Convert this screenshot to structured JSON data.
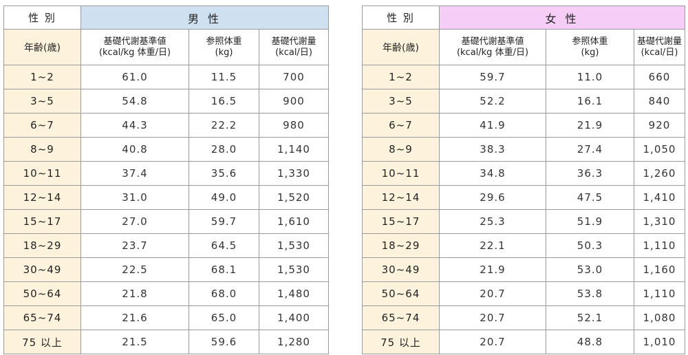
{
  "male": {
    "sex_label": "性 別",
    "sex_title": "男 性",
    "age_header": "年齢(歳)",
    "col_ref_value": [
      "基礎代謝基準値",
      "(kcal/kg 体重/日)"
    ],
    "col_ref_weight": [
      "参照体重",
      "(kg)"
    ],
    "col_bmr": [
      "基礎代謝量",
      "(kcal/日)"
    ],
    "rows": [
      {
        "age": "1~2",
        "ref": "61.0",
        "weight": "11.5",
        "bmr": "700"
      },
      {
        "age": "3~5",
        "ref": "54.8",
        "weight": "16.5",
        "bmr": "900"
      },
      {
        "age": "6~7",
        "ref": "44.3",
        "weight": "22.2",
        "bmr": "980"
      },
      {
        "age": "8~9",
        "ref": "40.8",
        "weight": "28.0",
        "bmr": "1,140"
      },
      {
        "age": "10~11",
        "ref": "37.4",
        "weight": "35.6",
        "bmr": "1,330"
      },
      {
        "age": "12~14",
        "ref": "31.0",
        "weight": "49.0",
        "bmr": "1,520"
      },
      {
        "age": "15~17",
        "ref": "27.0",
        "weight": "59.7",
        "bmr": "1,610"
      },
      {
        "age": "18~29",
        "ref": "23.7",
        "weight": "64.5",
        "bmr": "1,530"
      },
      {
        "age": "30~49",
        "ref": "22.5",
        "weight": "68.1",
        "bmr": "1,530"
      },
      {
        "age": "50~64",
        "ref": "21.8",
        "weight": "68.0",
        "bmr": "1,480"
      },
      {
        "age": "65~74",
        "ref": "21.6",
        "weight": "65.0",
        "bmr": "1,400"
      },
      {
        "age": "75 以上",
        "ref": "21.5",
        "weight": "59.6",
        "bmr": "1,280"
      }
    ]
  },
  "female": {
    "sex_label": "性 別",
    "sex_title": "女 性",
    "age_header": "年齢(歳)",
    "col_ref_value": [
      "基礎代謝基準値",
      "(kcal/kg 体重/日)"
    ],
    "col_ref_weight": [
      "参照体重",
      "(kg)"
    ],
    "col_bmr": [
      "基礎代謝量",
      "(kcal/日)"
    ],
    "rows": [
      {
        "age": "1~2",
        "ref": "59.7",
        "weight": "11.0",
        "bmr": "660"
      },
      {
        "age": "3~5",
        "ref": "52.2",
        "weight": "16.1",
        "bmr": "840"
      },
      {
        "age": "6~7",
        "ref": "41.9",
        "weight": "21.9",
        "bmr": "920"
      },
      {
        "age": "8~9",
        "ref": "38.3",
        "weight": "27.4",
        "bmr": "1,050"
      },
      {
        "age": "10~11",
        "ref": "34.8",
        "weight": "36.3",
        "bmr": "1,260"
      },
      {
        "age": "12~14",
        "ref": "29.6",
        "weight": "47.5",
        "bmr": "1,410"
      },
      {
        "age": "15~17",
        "ref": "25.3",
        "weight": "51.9",
        "bmr": "1,310"
      },
      {
        "age": "18~29",
        "ref": "22.1",
        "weight": "50.3",
        "bmr": "1,110"
      },
      {
        "age": "30~49",
        "ref": "21.9",
        "weight": "53.0",
        "bmr": "1,160"
      },
      {
        "age": "50~64",
        "ref": "20.7",
        "weight": "53.8",
        "bmr": "1,110"
      },
      {
        "age": "65~74",
        "ref": "20.7",
        "weight": "52.1",
        "bmr": "1,080"
      },
      {
        "age": "75 以上",
        "ref": "20.7",
        "weight": "48.8",
        "bmr": "1,010"
      }
    ]
  },
  "colors": {
    "male_header": "#cfe0f1",
    "female_header": "#f5cdf6",
    "age_column": "#fdf3dc",
    "border": "#9a9a9a"
  }
}
